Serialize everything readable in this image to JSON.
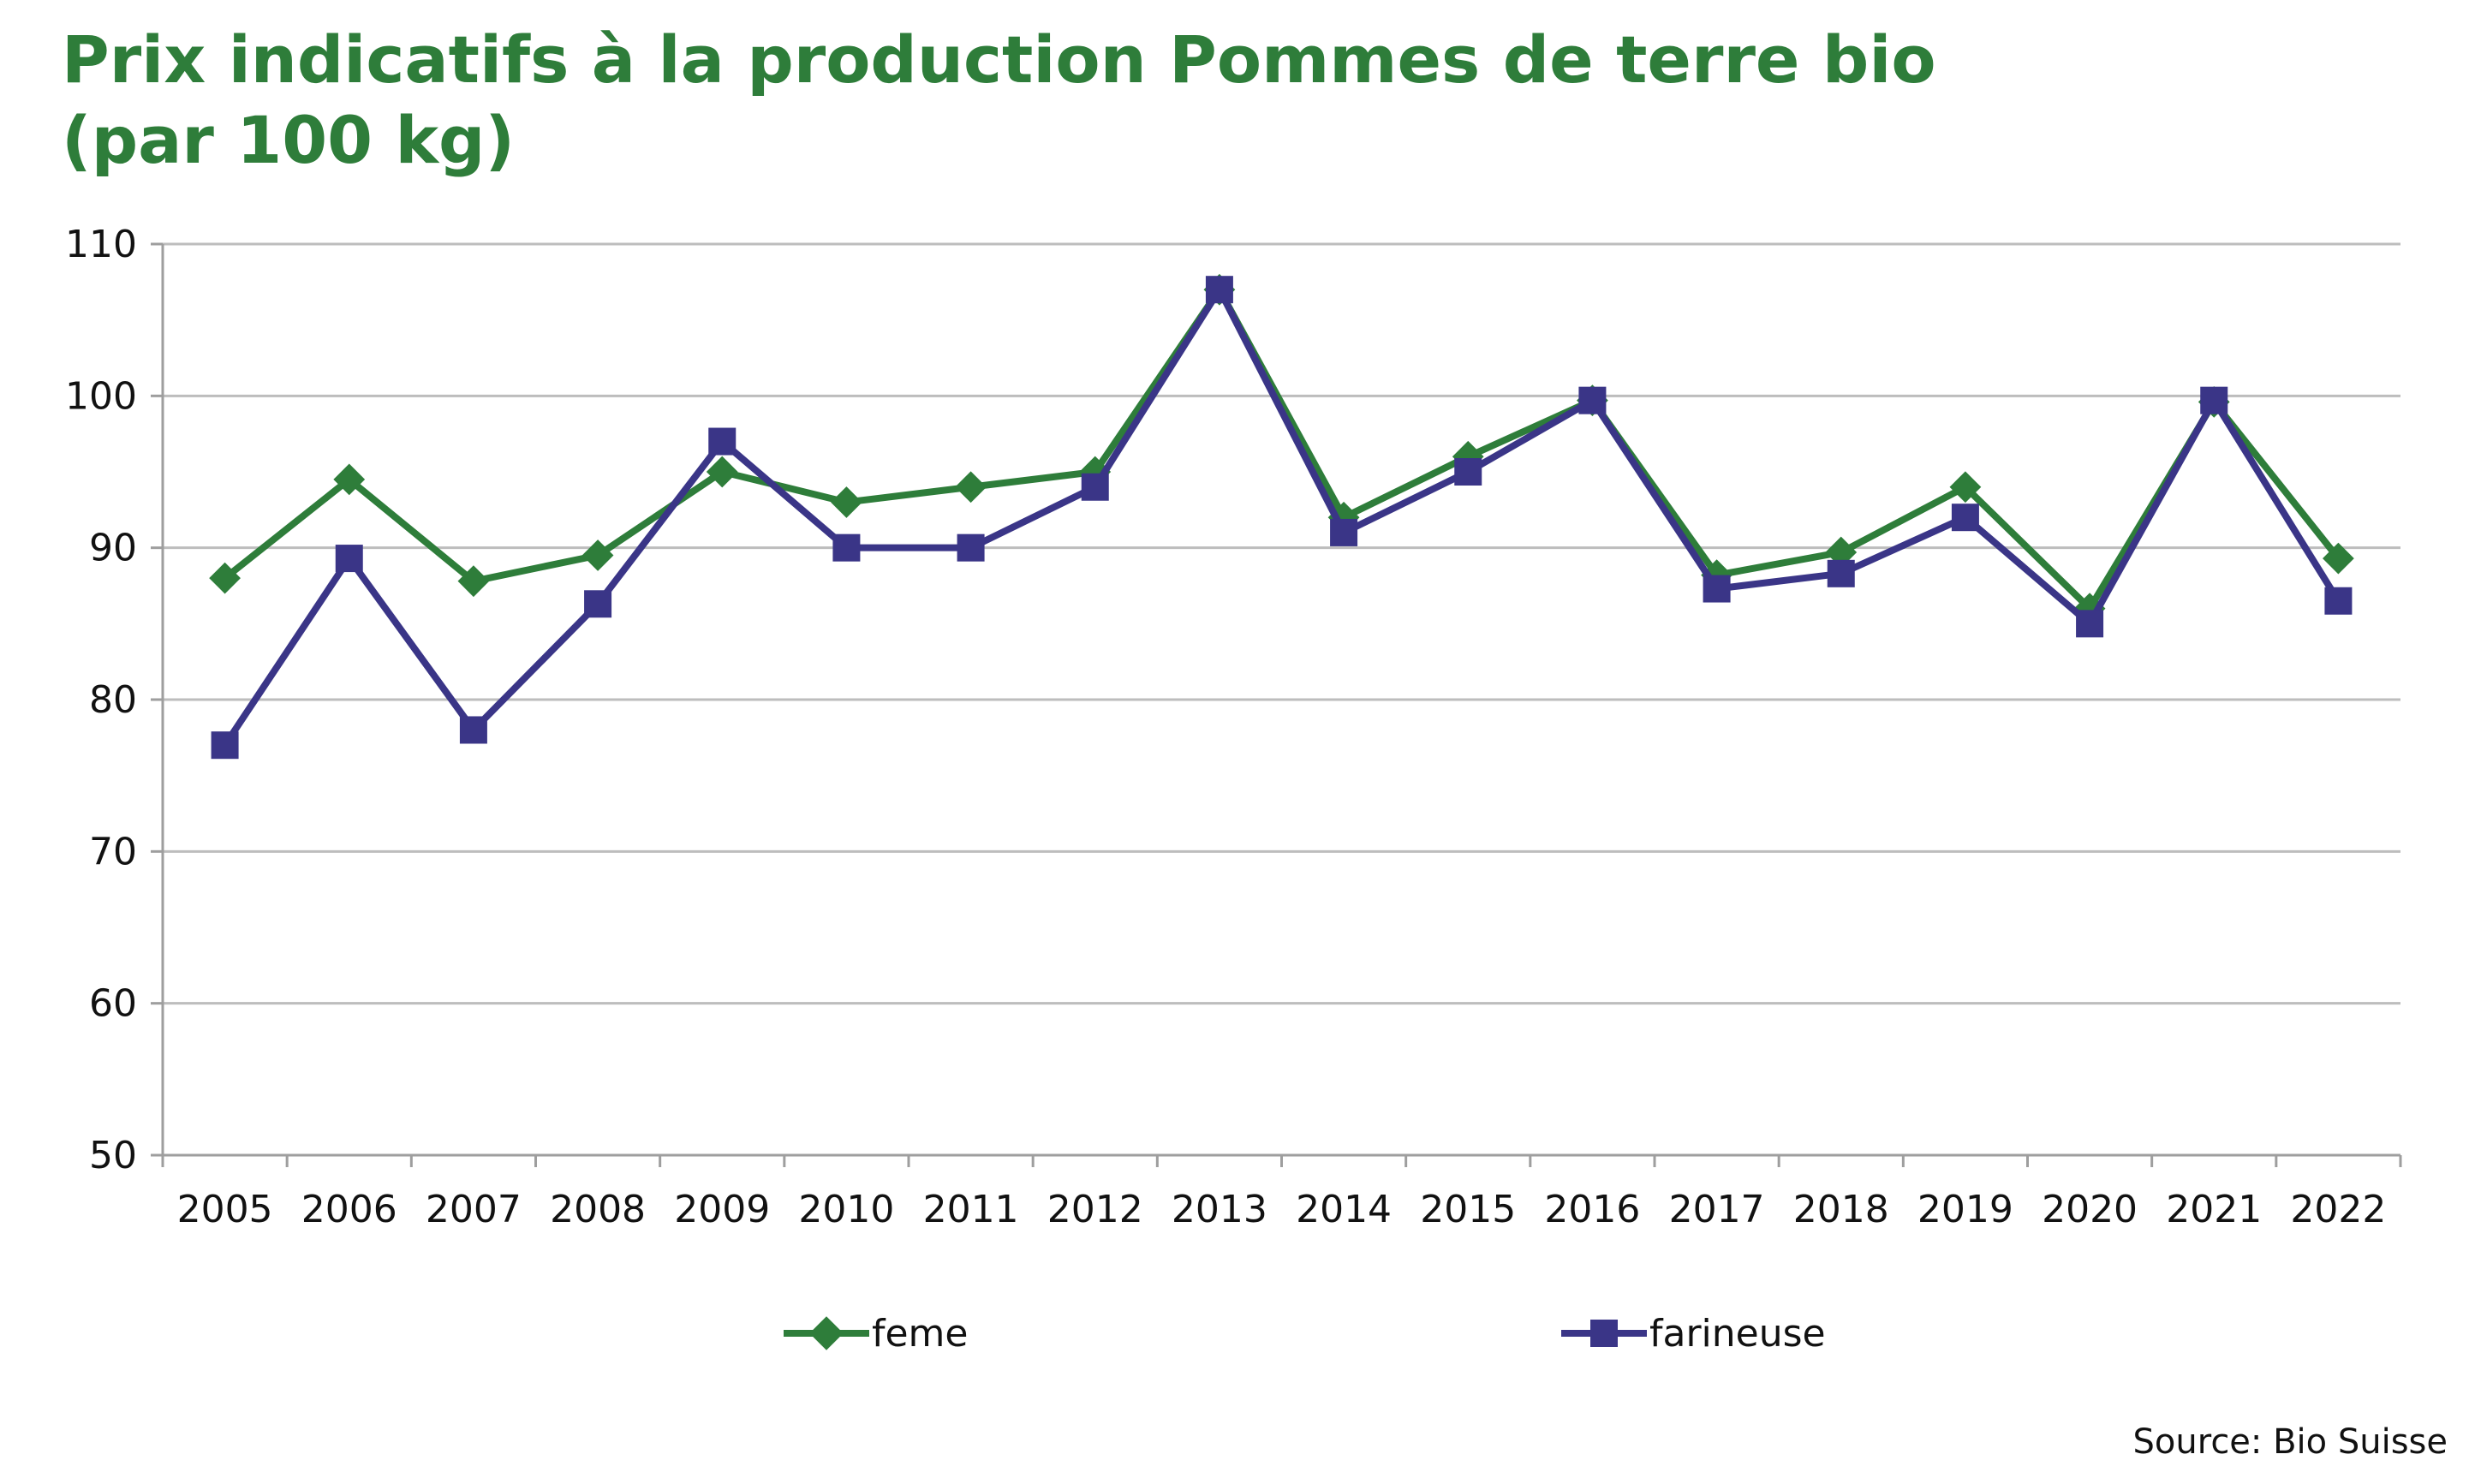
{
  "chart_data": {
    "type": "line",
    "title_line1": "Prix indicatifs à la production Pommes de terre bio",
    "title_line2": "(par 100 kg)",
    "xlabel": "",
    "ylabel": "",
    "ylim": [
      50,
      110
    ],
    "y_ticks": [
      "50",
      "60",
      "70",
      "80",
      "90",
      "100",
      "110"
    ],
    "y_tick_values": [
      50,
      60,
      70,
      80,
      90,
      100,
      110
    ],
    "categories": [
      "2005",
      "2006",
      "2007",
      "2008",
      "2009",
      "2010",
      "2011",
      "2012",
      "2013",
      "2014",
      "2015",
      "2016",
      "2017",
      "2018",
      "2019",
      "2020",
      "2021",
      "2022"
    ],
    "grid": true,
    "legend_position": "bottom",
    "series": [
      {
        "name": "feme",
        "color": "#2e7d3a",
        "marker": "diamond",
        "values": [
          88,
          94.5,
          87.8,
          89.5,
          95,
          93,
          94,
          95,
          107,
          92,
          96,
          99.7,
          88.2,
          89.7,
          94,
          86,
          99.6,
          89.3
        ]
      },
      {
        "name": "farineuse",
        "color": "#3a3587",
        "marker": "square",
        "values": [
          77,
          89.3,
          78,
          86.3,
          97,
          90,
          90,
          94,
          107,
          91,
          95,
          99.7,
          87.3,
          88.3,
          92,
          85,
          99.7,
          86.5
        ]
      }
    ],
    "source": "Source: Bio Suisse"
  }
}
